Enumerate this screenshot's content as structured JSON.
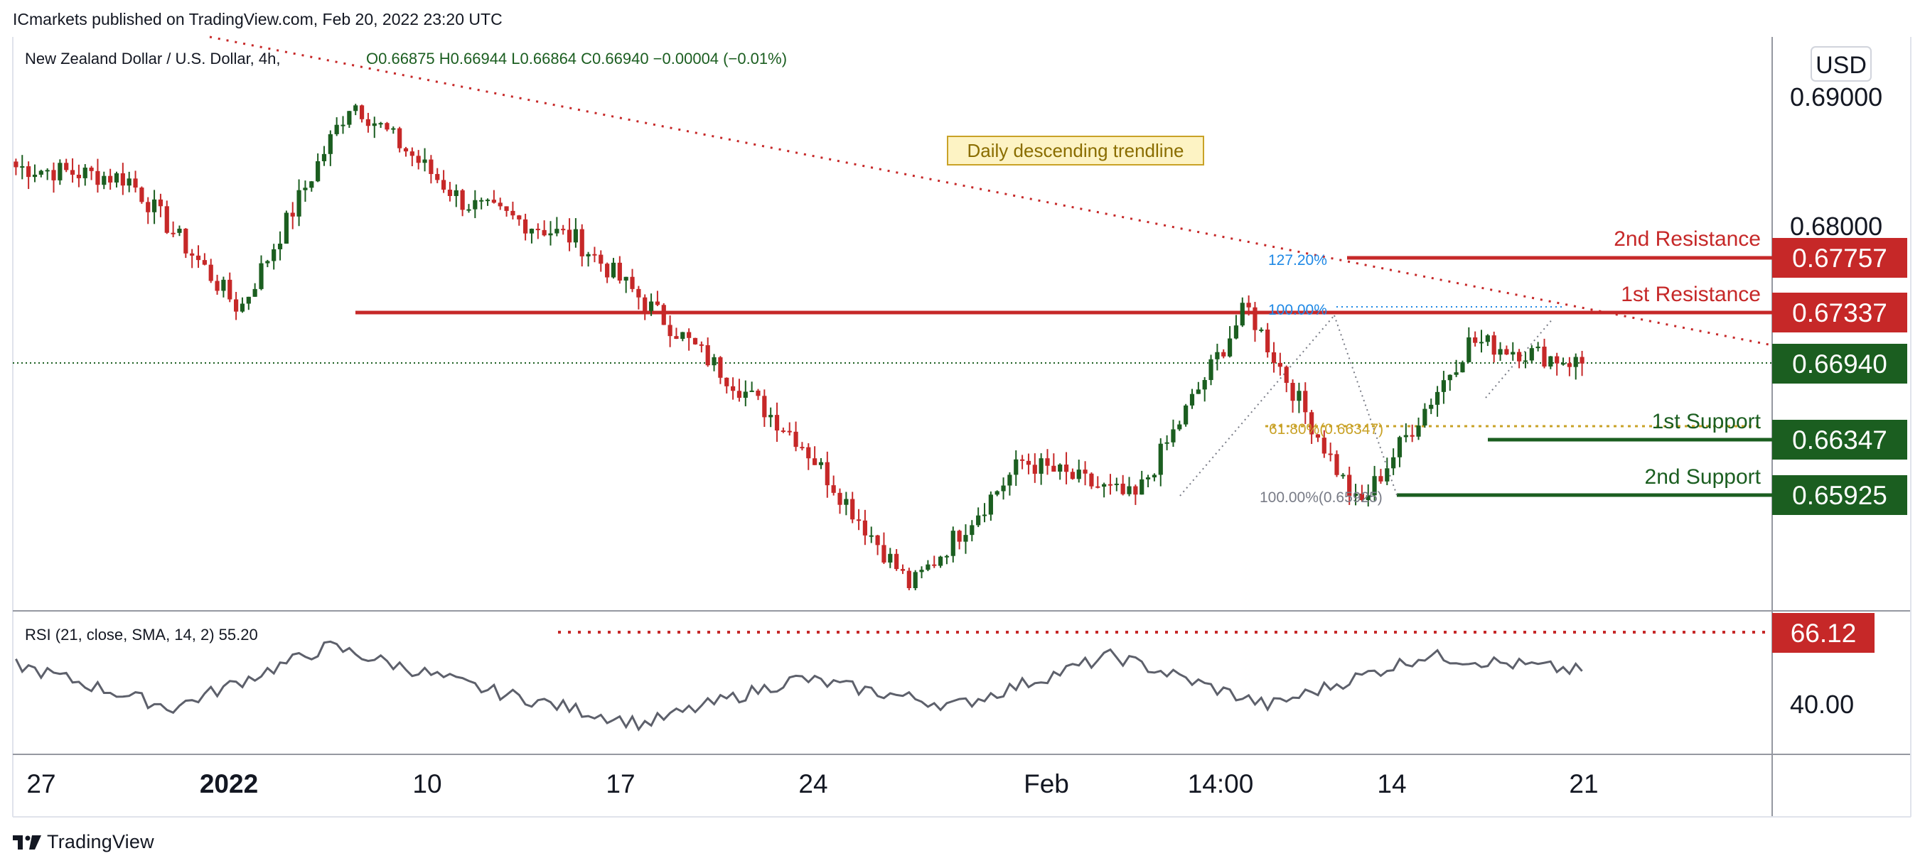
{
  "publisher": "ICmarkets published on TradingView.com, Feb 20, 2022 23:20 UTC",
  "legend": {
    "symbol": "New Zealand Dollar / U.S. Dollar, 4h,",
    "ohlc": "O0.66875  H0.66944  L0.66864  C0.66940  −0.00004 (−0.01%)"
  },
  "currency_button": "USD",
  "price_axis": {
    "ticks": [
      {
        "label": "0.69000",
        "value": 0.69
      },
      {
        "label": "0.68000",
        "value": 0.68
      }
    ]
  },
  "rsi_axis": {
    "ticks": [
      {
        "label": "40.00",
        "value": 40
      }
    ]
  },
  "rsi_legend": "RSI (21, close, SMA, 14, 2)  55.20",
  "annotation": "Daily descending trendline",
  "levels": [
    {
      "name": "2nd Resistance",
      "label": "2nd Resistance",
      "value": "0.67757",
      "color": "#c62828",
      "kind": "resistance"
    },
    {
      "name": "1st Resistance",
      "label": "1st Resistance",
      "value": "0.67337",
      "color": "#c62828",
      "kind": "resistance"
    },
    {
      "name": "last",
      "label": "",
      "value": "0.66940",
      "color": "#1b5e20",
      "kind": "last"
    },
    {
      "name": "1st Support",
      "label": "1st Support",
      "value": "0.66347",
      "color": "#1b5e20",
      "kind": "support"
    },
    {
      "name": "2nd Support",
      "label": "2nd Support",
      "value": "0.65925",
      "color": "#1b5e20",
      "kind": "support"
    }
  ],
  "rsi_level": {
    "value": "66.12",
    "color": "#c62828"
  },
  "fib_labels": [
    {
      "text": "127.20%",
      "color": "#1e88e5"
    },
    {
      "text": "100.00%",
      "color": "#1e88e5"
    },
    {
      "text": "61.80%(0.66347)",
      "color": "#c9a227"
    },
    {
      "text": "100.00%(0.65925)",
      "color": "#787b86"
    }
  ],
  "time_axis": [
    {
      "label": "27",
      "bold": false
    },
    {
      "label": "2022",
      "bold": true
    },
    {
      "label": "10",
      "bold": false
    },
    {
      "label": "17",
      "bold": false
    },
    {
      "label": "24",
      "bold": false
    },
    {
      "label": "Feb",
      "bold": false
    },
    {
      "label": "14:00",
      "bold": false
    },
    {
      "label": "14",
      "bold": false
    },
    {
      "label": "21",
      "bold": false
    }
  ],
  "brand": "TradingView",
  "colors": {
    "up": "#1b5e20",
    "down": "#c62828",
    "rsi": "#5d606b",
    "annotation_bg": "#fdf3c4",
    "annotation_border": "#c9a227"
  },
  "chart_data": {
    "type": "candlestick",
    "symbol": "NZDUSD",
    "timeframe": "4h",
    "y_range": [
      0.652,
      0.6925
    ],
    "price_key_points": [
      {
        "time": "Dec 26",
        "close": 0.6833
      },
      {
        "time": "Jan 03",
        "close": 0.6825
      },
      {
        "time": "Jan 06",
        "close": 0.6732
      },
      {
        "time": "Jan 13",
        "close": 0.688
      },
      {
        "time": "Jan 17",
        "close": 0.6808
      },
      {
        "time": "Jan 21",
        "close": 0.6782
      },
      {
        "time": "Jan 24",
        "close": 0.671
      },
      {
        "time": "Jan 28",
        "close": 0.664
      },
      {
        "time": "Jan 31",
        "close": 0.6536
      },
      {
        "time": "Feb 03",
        "close": 0.6625
      },
      {
        "time": "Feb 08",
        "close": 0.6598
      },
      {
        "time": "Feb 11",
        "close": 0.6734
      },
      {
        "time": "Feb 14",
        "close": 0.6592
      },
      {
        "time": "Feb 17",
        "close": 0.671
      },
      {
        "time": "Feb 20",
        "close": 0.6694
      }
    ],
    "rsi": {
      "length": 21,
      "last": 55.2,
      "key_points": [
        {
          "time": "Dec 26",
          "value": 58
        },
        {
          "time": "Jan 06",
          "value": 39
        },
        {
          "time": "Jan 13",
          "value": 66
        },
        {
          "time": "Jan 21",
          "value": 47
        },
        {
          "time": "Jan 31",
          "value": 32
        },
        {
          "time": "Feb 03",
          "value": 52
        },
        {
          "time": "Feb 08",
          "value": 40
        },
        {
          "time": "Feb 11",
          "value": 62
        },
        {
          "time": "Feb 14",
          "value": 40
        },
        {
          "time": "Feb 18",
          "value": 62
        },
        {
          "time": "Feb 20",
          "value": 55.2
        }
      ]
    }
  }
}
